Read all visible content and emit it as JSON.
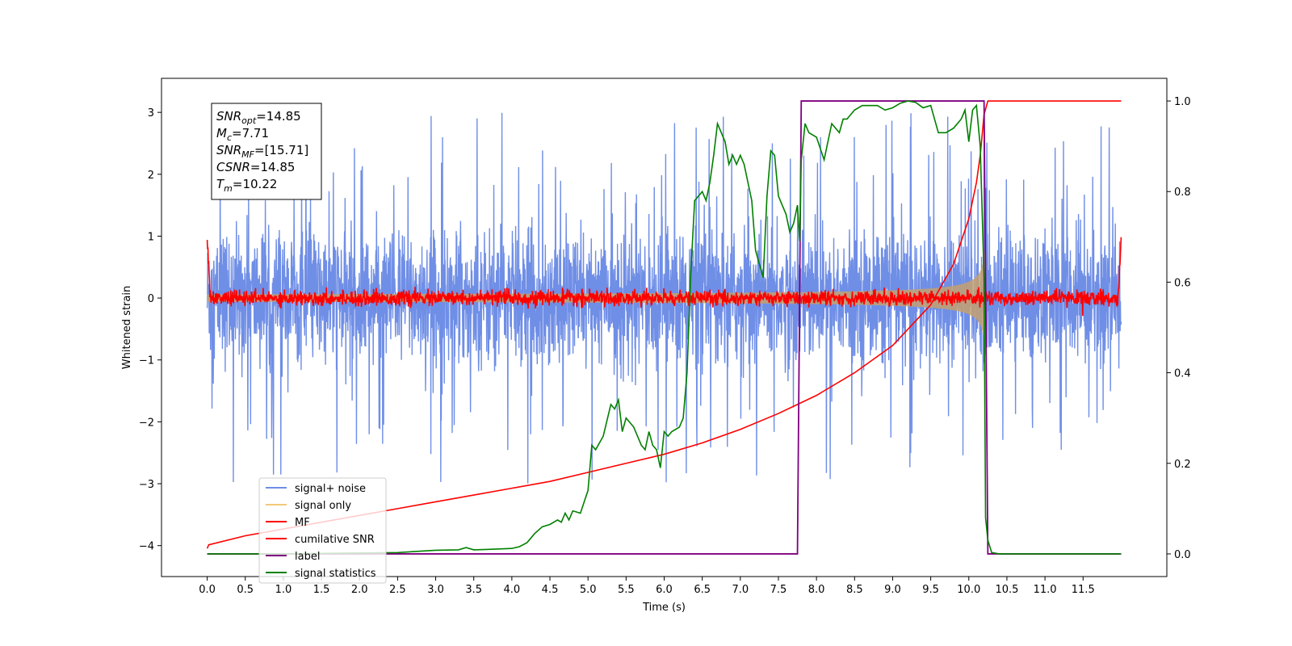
{
  "chart_data": {
    "type": "line",
    "xlabel": "Time (s)",
    "ylabel": "Whitened strain",
    "xlim": [
      -0.6,
      12.6
    ],
    "ylim_left": [
      -4.5,
      3.55
    ],
    "ylim_right": [
      -0.05,
      1.05
    ],
    "x_ticks": [
      "0.0",
      "0.5",
      "1.0",
      "1.5",
      "2.0",
      "2.5",
      "3.0",
      "3.5",
      "4.0",
      "4.5",
      "5.0",
      "5.5",
      "6.0",
      "6.5",
      "7.0",
      "7.5",
      "8.0",
      "8.5",
      "9.0",
      "9.5",
      "10.0",
      "10.5",
      "11.0",
      "11.5"
    ],
    "y_ticks_left": [
      "3",
      "2",
      "1",
      "0",
      "−1",
      "−2",
      "−3",
      "−4"
    ],
    "y_ticks_right": [
      "0.0",
      "0.2",
      "0.4",
      "0.6",
      "0.8",
      "1.0"
    ],
    "grid": false,
    "legend_position": "bottom-left",
    "annotation": {
      "lines": [
        {
          "label": "SNR",
          "sub": "opt",
          "value": "=14.85"
        },
        {
          "label": "M",
          "sub": "c",
          "value": "=7.71"
        },
        {
          "label": "SNR",
          "sub": "MF",
          "value": "=[15.71]"
        },
        {
          "label": "CSNR",
          "sub": "",
          "value": "=14.85"
        },
        {
          "label": "T",
          "sub": "m",
          "value": "=10.22"
        }
      ]
    },
    "series": [
      {
        "name": "signal+ noise",
        "color": "#6f8ee6",
        "axis": "left",
        "x_range": [
          0,
          12
        ],
        "noise_amplitude": 0.85,
        "spike_range": [
          -3.7,
          3.2
        ]
      },
      {
        "name": "signal only",
        "color": "#f5c97a",
        "axis": "left",
        "envelope": {
          "t0": 0,
          "t_merge": 10.22,
          "amp_start": 0.03,
          "amp_peak": 0.95
        }
      },
      {
        "name": "MF",
        "color": "#ff0000",
        "axis": "left",
        "noise_amplitude": 0.06,
        "edge_values": [
          1.0,
          0.92
        ]
      },
      {
        "name": "cumilative SNR",
        "color": "#ff0000",
        "axis": "right",
        "x": [
          0.0,
          0.02,
          0.5,
          1.0,
          1.5,
          2.0,
          2.5,
          3.0,
          3.5,
          4.0,
          4.5,
          5.0,
          5.5,
          6.0,
          6.5,
          7.0,
          7.5,
          8.0,
          8.5,
          9.0,
          9.5,
          9.8,
          10.0,
          10.1,
          10.15,
          10.2,
          10.25,
          12.0
        ],
        "y": [
          0.012,
          0.02,
          0.04,
          0.055,
          0.07,
          0.085,
          0.1,
          0.115,
          0.13,
          0.145,
          0.16,
          0.18,
          0.2,
          0.22,
          0.245,
          0.275,
          0.31,
          0.35,
          0.4,
          0.46,
          0.55,
          0.64,
          0.74,
          0.82,
          0.88,
          0.97,
          1.0,
          1.0
        ]
      },
      {
        "name": "label",
        "color": "#800080",
        "axis": "right",
        "x": [
          0.0,
          7.75,
          7.8,
          10.2,
          10.25,
          12.0
        ],
        "y": [
          0.0,
          0.0,
          1.0,
          1.0,
          0.0,
          0.0
        ]
      },
      {
        "name": "signal statistics",
        "color": "#008000",
        "axis": "right",
        "x": [
          0.0,
          1.0,
          2.0,
          2.5,
          3.0,
          3.3,
          3.4,
          3.5,
          3.7,
          4.0,
          4.1,
          4.2,
          4.3,
          4.4,
          4.5,
          4.6,
          4.65,
          4.7,
          4.75,
          4.8,
          4.9,
          5.0,
          5.05,
          5.1,
          5.2,
          5.3,
          5.35,
          5.4,
          5.45,
          5.5,
          5.55,
          5.6,
          5.7,
          5.75,
          5.8,
          5.85,
          5.9,
          5.95,
          6.0,
          6.05,
          6.1,
          6.2,
          6.25,
          6.3,
          6.35,
          6.4,
          6.5,
          6.55,
          6.6,
          6.65,
          6.7,
          6.8,
          6.85,
          6.9,
          6.95,
          7.0,
          7.05,
          7.1,
          7.15,
          7.2,
          7.3,
          7.35,
          7.4,
          7.45,
          7.5,
          7.55,
          7.6,
          7.65,
          7.7,
          7.75,
          7.78,
          7.8,
          7.85,
          7.9,
          8.0,
          8.1,
          8.2,
          8.3,
          8.35,
          8.4,
          8.5,
          8.6,
          8.7,
          8.8,
          8.9,
          9.0,
          9.1,
          9.2,
          9.3,
          9.4,
          9.5,
          9.6,
          9.7,
          9.8,
          9.9,
          9.95,
          10.0,
          10.05,
          10.1,
          10.15,
          10.2,
          10.22,
          10.25,
          10.3,
          10.4,
          10.6,
          11.0,
          11.5,
          12.0
        ],
        "y": [
          0.0,
          0.0,
          0.002,
          0.003,
          0.008,
          0.009,
          0.014,
          0.009,
          0.01,
          0.012,
          0.016,
          0.025,
          0.045,
          0.06,
          0.065,
          0.075,
          0.07,
          0.09,
          0.075,
          0.095,
          0.09,
          0.14,
          0.24,
          0.23,
          0.26,
          0.33,
          0.32,
          0.34,
          0.27,
          0.3,
          0.29,
          0.28,
          0.24,
          0.23,
          0.27,
          0.24,
          0.23,
          0.19,
          0.27,
          0.26,
          0.27,
          0.28,
          0.3,
          0.4,
          0.62,
          0.78,
          0.8,
          0.78,
          0.82,
          0.88,
          0.95,
          0.91,
          0.86,
          0.88,
          0.86,
          0.88,
          0.86,
          0.82,
          0.78,
          0.67,
          0.61,
          0.79,
          0.89,
          0.88,
          0.79,
          0.77,
          0.75,
          0.71,
          0.73,
          0.77,
          0.69,
          0.87,
          0.95,
          0.93,
          0.92,
          0.87,
          0.95,
          0.93,
          0.96,
          0.96,
          0.98,
          0.99,
          0.99,
          0.99,
          0.98,
          0.985,
          0.995,
          1.0,
          0.997,
          0.985,
          0.99,
          0.93,
          0.93,
          0.94,
          0.96,
          0.98,
          0.91,
          0.98,
          0.99,
          0.9,
          0.61,
          0.08,
          0.03,
          0.003,
          0.0,
          0.0,
          0.0,
          0.0,
          0.0
        ]
      }
    ]
  }
}
